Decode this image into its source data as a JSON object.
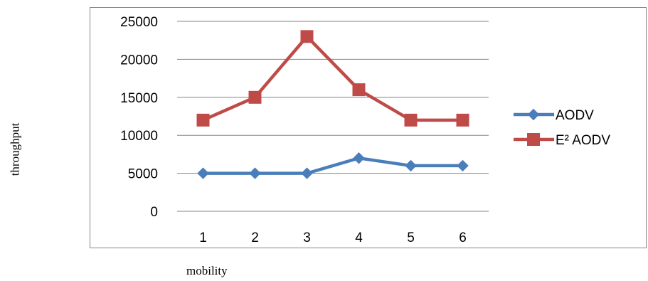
{
  "chart_data": {
    "type": "line",
    "categories": [
      "1",
      "2",
      "3",
      "4",
      "5",
      "6"
    ],
    "series": [
      {
        "name": "AODV",
        "values": [
          5000,
          5000,
          5000,
          7000,
          6000,
          6000
        ],
        "color": "#4a7ebb",
        "marker": "diamond"
      },
      {
        "name": "E² AODV",
        "values": [
          12000,
          15000,
          23000,
          16000,
          12000,
          12000
        ],
        "color": "#be4b48",
        "marker": "square"
      }
    ],
    "ylim": [
      0,
      25000
    ],
    "yticks": [
      "0",
      "5000",
      "10000",
      "15000",
      "20000",
      "25000"
    ],
    "xlabel": "mobility",
    "ylabel": "throughput",
    "grid": "horizontal",
    "legend": "right"
  }
}
